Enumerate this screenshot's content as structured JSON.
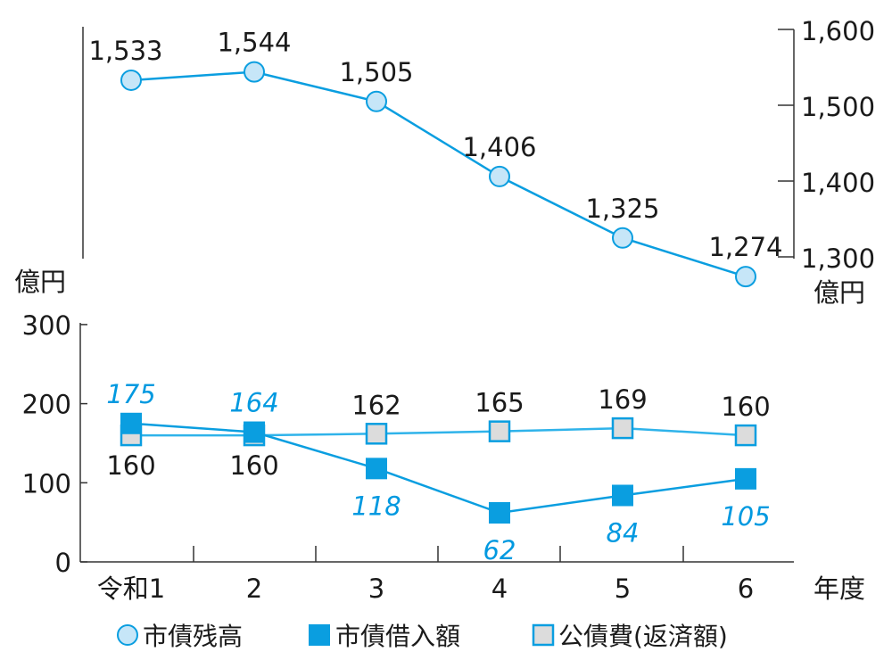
{
  "chart_data": [
    {
      "type": "line",
      "title": "",
      "categories": [
        "令和1",
        "2",
        "3",
        "4",
        "5",
        "6"
      ],
      "series": [
        {
          "name": "市債残高",
          "values": [
            1533,
            1544,
            1505,
            1406,
            1325,
            1274
          ]
        }
      ],
      "y_axis": {
        "side": "right",
        "unit": "億円",
        "ylim": [
          1300,
          1600
        ],
        "ticks": [
          1600,
          1500,
          1400,
          1300
        ],
        "tick_labels": [
          "1,600",
          "1,500",
          "1,400",
          "1,300"
        ]
      },
      "left_unit": "億円",
      "data_labels": [
        "1,533",
        "1,544",
        "1,505",
        "1,406",
        "1,325",
        "1,274"
      ],
      "grid": false
    },
    {
      "type": "line",
      "categories": [
        "令和1",
        "2",
        "3",
        "4",
        "5",
        "6"
      ],
      "xlabel": "年度",
      "ylabel": "億円",
      "ylim": [
        0,
        300
      ],
      "ticks": [
        0,
        100,
        200,
        300
      ],
      "tick_labels": [
        "0",
        "100",
        "200",
        "300"
      ],
      "series": [
        {
          "name": "市債借入額",
          "values": [
            175,
            164,
            118,
            62,
            84,
            105
          ]
        },
        {
          "name": "公債費(返済額)",
          "values": [
            160,
            160,
            162,
            165,
            169,
            160
          ]
        }
      ],
      "grid": false
    }
  ],
  "legend": [
    {
      "label": "市債残高",
      "marker": "circle"
    },
    {
      "label": "市債借入額",
      "marker": "filled-square"
    },
    {
      "label": "公債費(返済額)",
      "marker": "gray-square"
    }
  ],
  "legend_position": "bottom",
  "colors": {
    "line": "#0a9ee0",
    "light_line": "#2fb3ea",
    "circle_fill": "#c6e6f8",
    "square_fill": "#0a9ee0",
    "gray_fill": "#dcdcdc",
    "axis": "#333333"
  }
}
